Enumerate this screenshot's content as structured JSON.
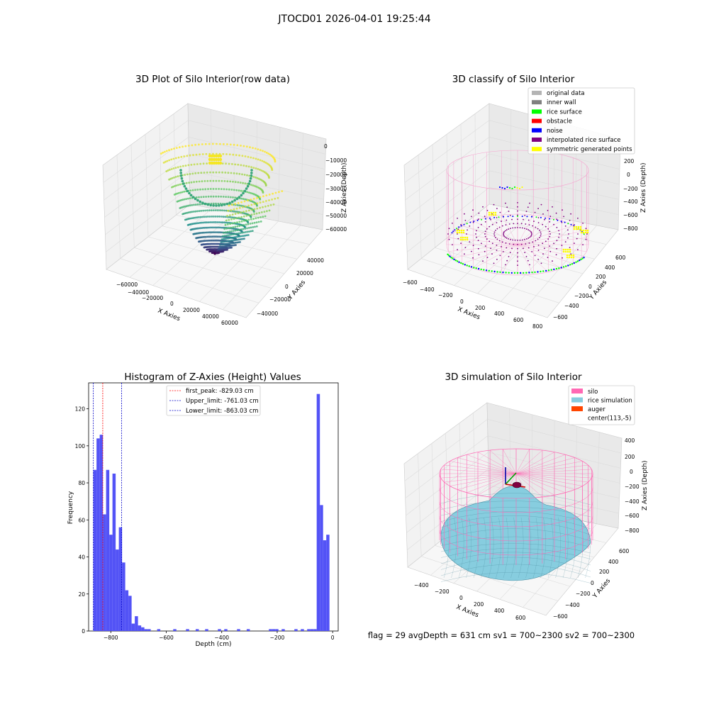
{
  "suptitle": "JTOCD01 2026-04-01 19:25:44",
  "colors": {
    "histogram": "#4a4af5",
    "first_peak_line": "#ff0000",
    "limit_line": "#0000c8",
    "silo": "#ff69b4",
    "rice": "#87cddf",
    "auger": "#ff4500",
    "original": "#b4b4b4",
    "inner_wall": "#808080",
    "rice_surface": "#00ff00",
    "obstacle": "#ff0000",
    "noise": "#0000ff",
    "interpolated": "#800080",
    "symmetric": "#ffff00"
  },
  "panels": {
    "raw": {
      "title": "3D Plot of Silo Interior(row data)",
      "xlabel": "X Axies",
      "ylabel": "Y Axies",
      "zlabel": "Z Axies (Depth)",
      "xticks": [
        "−60000",
        "−40000",
        "−20000",
        "0",
        "20000",
        "40000",
        "60000"
      ],
      "yticks": [
        "40000",
        "20000",
        "0",
        "−20000",
        "−40000"
      ],
      "zticks": [
        "0",
        "−10000",
        "−20000",
        "−30000",
        "−40000",
        "−50000",
        "−60000"
      ]
    },
    "classify": {
      "title": "3D classify of Silo Interior",
      "xlabel": "X Axies",
      "ylabel": "Y Axies",
      "zlabel": "Z Axies (Depth)",
      "xticks": [
        "−600",
        "−400",
        "−200",
        "0",
        "200",
        "400",
        "600",
        "800"
      ],
      "yticks": [
        "600",
        "400",
        "200",
        "0",
        "−200",
        "−400",
        "−600"
      ],
      "zticks": [
        "200",
        "0",
        "−200",
        "−400",
        "−600",
        "−800"
      ],
      "legend": [
        {
          "label": "original data",
          "color": "#b4b4b4"
        },
        {
          "label": "inner wall",
          "color": "#808080"
        },
        {
          "label": "rice surface",
          "color": "#00ff00"
        },
        {
          "label": "obstacle",
          "color": "#ff0000"
        },
        {
          "label": "noise",
          "color": "#0000ff"
        },
        {
          "label": "interpolated rice surface",
          "color": "#800080"
        },
        {
          "label": "symmetric generated points",
          "color": "#ffff00"
        }
      ]
    },
    "histogram": {
      "title": "Histogram of Z-Axies (Height) Values",
      "xlabel": "Depth (cm)",
      "ylabel": "Frequency",
      "legend": [
        {
          "label": "first_peak: -829.03 cm",
          "color": "#ff0000"
        },
        {
          "label": "Upper_limit: -761.03 cm",
          "color": "#0000c8"
        },
        {
          "label": "Lower_limit: -863.03 cm",
          "color": "#0000c8"
        }
      ]
    },
    "simulation": {
      "title": "3D simulation of Silo Interior",
      "xlabel": "X Axies",
      "ylabel": "Y Axies",
      "zlabel": "Z Axies (Depth)",
      "xticks": [
        "−400",
        "−200",
        "0",
        "200",
        "400",
        "600"
      ],
      "yticks": [
        "600",
        "400",
        "200",
        "0",
        "−200",
        "−400",
        "−600"
      ],
      "zticks": [
        "400",
        "200",
        "0",
        "−200",
        "−400",
        "−600",
        "−800"
      ],
      "legend": [
        {
          "label": "silo",
          "color": "#ff69b4"
        },
        {
          "label": "rice simulation",
          "color": "#87cddf"
        },
        {
          "label": "auger",
          "color": "#ff4500"
        },
        {
          "label": "center(113,-5)",
          "color": ""
        }
      ]
    }
  },
  "status_line": "flag = 29  avgDepth = 631 cm  sv1 = 700~2300  sv2 = 700~2300",
  "chart_data": {
    "type": "bar",
    "title": "Histogram of Z-Axies (Height) Values",
    "xlabel": "Depth (cm)",
    "ylabel": "Frequency",
    "xlim": [
      -880,
      20
    ],
    "ylim": [
      0,
      134
    ],
    "xticks": [
      -800,
      -600,
      -400,
      -200,
      0
    ],
    "yticks": [
      0,
      20,
      40,
      60,
      80,
      100,
      120
    ],
    "bin_width": 11.5,
    "bins": [
      {
        "x": -863,
        "count": 87
      },
      {
        "x": -851.5,
        "count": 104
      },
      {
        "x": -840,
        "count": 106
      },
      {
        "x": -828.5,
        "count": 63
      },
      {
        "x": -817,
        "count": 87
      },
      {
        "x": -805.5,
        "count": 52
      },
      {
        "x": -794,
        "count": 85
      },
      {
        "x": -782.5,
        "count": 44
      },
      {
        "x": -771,
        "count": 56
      },
      {
        "x": -759.5,
        "count": 37
      },
      {
        "x": -748,
        "count": 22
      },
      {
        "x": -736.5,
        "count": 19
      },
      {
        "x": -725,
        "count": 4
      },
      {
        "x": -713.5,
        "count": 8
      },
      {
        "x": -702,
        "count": 3
      },
      {
        "x": -690.5,
        "count": 2
      },
      {
        "x": -679,
        "count": 1
      },
      {
        "x": -667.5,
        "count": 1
      },
      {
        "x": -633,
        "count": 1
      },
      {
        "x": -575,
        "count": 1
      },
      {
        "x": -529,
        "count": 1
      },
      {
        "x": -494,
        "count": 1
      },
      {
        "x": -460,
        "count": 1
      },
      {
        "x": -414,
        "count": 1
      },
      {
        "x": -391,
        "count": 1
      },
      {
        "x": -345,
        "count": 1
      },
      {
        "x": -310,
        "count": 1
      },
      {
        "x": -230,
        "count": 1
      },
      {
        "x": -218.5,
        "count": 1
      },
      {
        "x": -207,
        "count": 1
      },
      {
        "x": -184,
        "count": 1
      },
      {
        "x": -138,
        "count": 1
      },
      {
        "x": -115,
        "count": 1
      },
      {
        "x": -92,
        "count": 1
      },
      {
        "x": -80.5,
        "count": 1
      },
      {
        "x": -69,
        "count": 1
      },
      {
        "x": -57.5,
        "count": 128
      },
      {
        "x": -46,
        "count": 68
      },
      {
        "x": -34.5,
        "count": 49
      },
      {
        "x": -23,
        "count": 52
      }
    ],
    "first_peak": -829.03,
    "upper_limit": -761.03,
    "lower_limit": -863.03
  }
}
